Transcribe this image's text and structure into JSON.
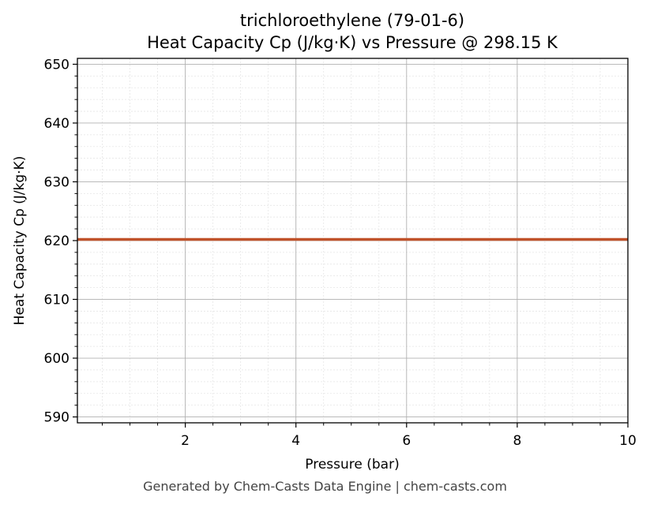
{
  "chart_data": {
    "type": "line",
    "title": "trichloroethylene (79-01-6)",
    "subtitle": "Heat Capacity Cp (J/kg·K) vs Pressure @ 298.15 K",
    "xlabel": "Pressure (bar)",
    "ylabel": "Heat Capacity Cp (J/kg·K)",
    "xlim": [
      0.05,
      10
    ],
    "ylim": [
      589,
      651
    ],
    "xticks": [
      2,
      4,
      6,
      8,
      10
    ],
    "yticks": [
      590,
      600,
      610,
      620,
      630,
      640,
      650
    ],
    "grid": true,
    "series": [
      {
        "color": "#c0522a",
        "x": [
          0.05,
          1,
          2,
          3,
          4,
          5,
          6,
          7,
          8,
          9,
          10
        ],
        "y": [
          620.2,
          620.2,
          620.2,
          620.2,
          620.2,
          620.2,
          620.2,
          620.2,
          620.2,
          620.2,
          620.2
        ]
      }
    ]
  },
  "footer": "Generated by Chem-Casts Data Engine | chem-casts.com"
}
